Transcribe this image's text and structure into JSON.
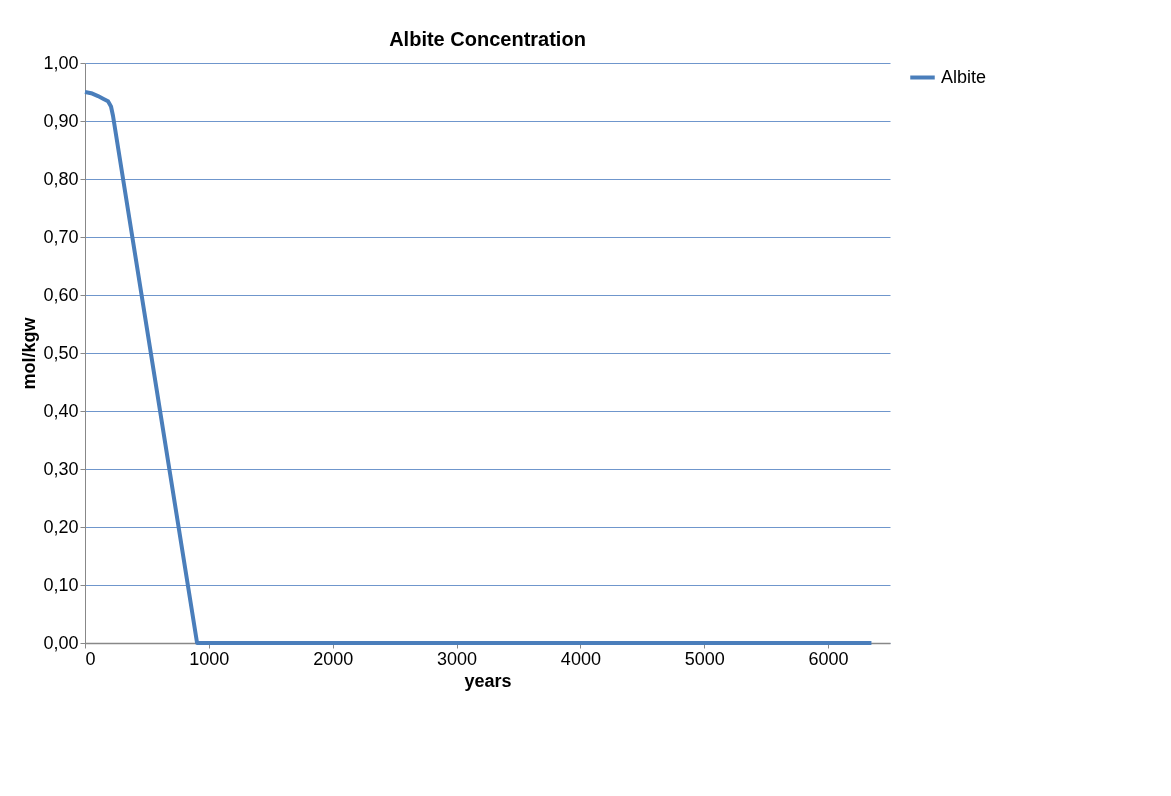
{
  "chart_data": {
    "type": "line",
    "title": "Albite Concentration",
    "xlabel": "years",
    "ylabel": "mol/kgw",
    "series": [
      {
        "name": "Albite",
        "color": "#4a7ebb",
        "x": [
          0,
          50,
          105,
          150,
          186,
          210,
          226,
          905,
          2000,
          4000,
          6350
        ],
        "values": [
          0.95,
          0.948,
          0.943,
          0.938,
          0.934,
          0.925,
          0.909,
          0.0,
          0.0,
          0.0,
          0.0
        ]
      }
    ],
    "xlim": [
      0,
      6500
    ],
    "xticks": [
      0,
      1000,
      2000,
      3000,
      4000,
      5000,
      6000
    ],
    "ylim": [
      0,
      1
    ],
    "yticks": [
      {
        "value": 0,
        "label": "0,00"
      },
      {
        "value": 0.1,
        "label": "0,10"
      },
      {
        "value": 0.2,
        "label": "0,20"
      },
      {
        "value": 0.3,
        "label": "0,30"
      },
      {
        "value": 0.4,
        "label": "0,40"
      },
      {
        "value": 0.5,
        "label": "0,50"
      },
      {
        "value": 0.6,
        "label": "0,60"
      },
      {
        "value": 0.7,
        "label": "0,70"
      },
      {
        "value": 0.8,
        "label": "0,80"
      },
      {
        "value": 0.9,
        "label": "0,90"
      },
      {
        "value": 1.0,
        "label": "1,00"
      }
    ],
    "grid": "y",
    "legend": "right",
    "marker": "none",
    "line_style": "solid"
  }
}
